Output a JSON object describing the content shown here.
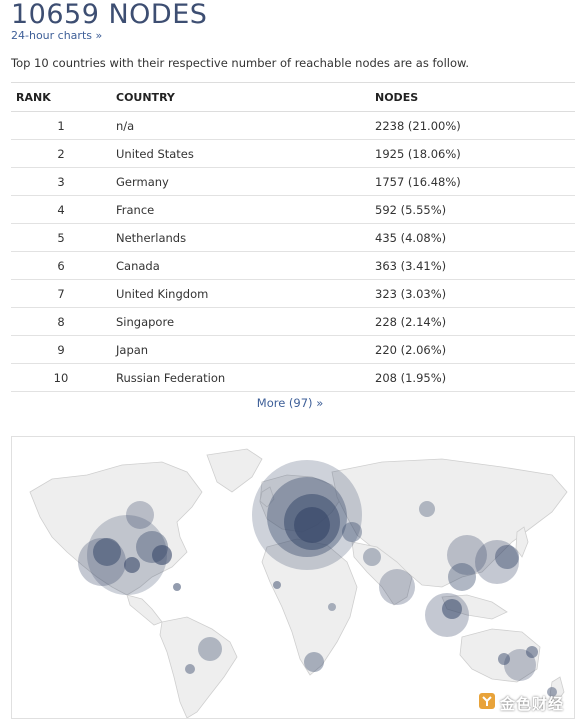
{
  "page": {
    "title": "10659 NODES",
    "charts_link": "24-hour charts »",
    "intro": "Top 10 countries with their respective number of reachable nodes are as follow."
  },
  "table": {
    "headers": {
      "rank": "RANK",
      "country": "COUNTRY",
      "nodes": "NODES"
    },
    "rows": [
      {
        "rank": "1",
        "country": "n/a",
        "nodes": "2238 (21.00%)"
      },
      {
        "rank": "2",
        "country": "United States",
        "nodes": "1925 (18.06%)"
      },
      {
        "rank": "3",
        "country": "Germany",
        "nodes": "1757 (16.48%)"
      },
      {
        "rank": "4",
        "country": "France",
        "nodes": "592 (5.55%)"
      },
      {
        "rank": "5",
        "country": "Netherlands",
        "nodes": "435 (4.08%)"
      },
      {
        "rank": "6",
        "country": "Canada",
        "nodes": "363 (3.41%)"
      },
      {
        "rank": "7",
        "country": "United Kingdom",
        "nodes": "323 (3.03%)"
      },
      {
        "rank": "8",
        "country": "Singapore",
        "nodes": "228 (2.14%)"
      },
      {
        "rank": "9",
        "country": "Japan",
        "nodes": "220 (2.06%)"
      },
      {
        "rank": "10",
        "country": "Russian Federation",
        "nodes": "208 (1.95%)"
      }
    ]
  },
  "more_link": "More (97) »",
  "colors": {
    "title": "#3d4e72",
    "link": "#3e5f98",
    "bubble_fill": "#3a4a6b",
    "land": "#eeeeee"
  },
  "watermark": {
    "text": "金色财经",
    "icon": "jinse-logo-icon"
  }
}
